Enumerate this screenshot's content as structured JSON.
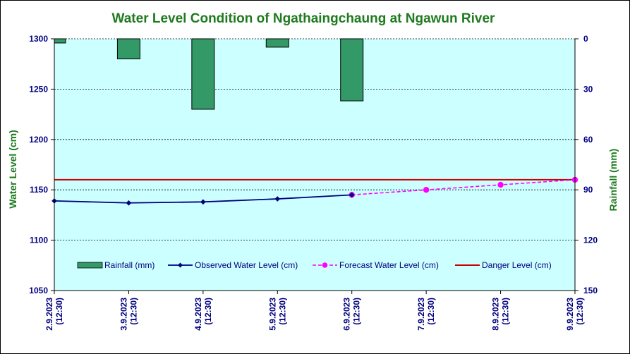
{
  "chart_data": {
    "type": "bar+line",
    "title": "Water Level Condition of  Ngathaingchaung at Ngawun River",
    "ylabel_left": "Water Level (cm)",
    "ylabel_right": "Rainfall (mm)",
    "ylim_left": [
      1050,
      1300
    ],
    "yticks_left": [
      1050,
      1100,
      1150,
      1200,
      1250,
      1300
    ],
    "ylim_right_inverted": [
      0,
      150
    ],
    "yticks_right": [
      0,
      30,
      60,
      90,
      120,
      150
    ],
    "categories": [
      [
        "2.9.2023",
        "(12:30)"
      ],
      [
        "3.9.2023",
        "(12:30)"
      ],
      [
        "4.9.2023",
        "(12:30)"
      ],
      [
        "5.9.2023",
        "(12:30)"
      ],
      [
        "6.9.2023",
        "(12:30)"
      ],
      [
        "7.9.2023",
        "(12:30)"
      ],
      [
        "8.9.2023",
        "(12:30)"
      ],
      [
        "9.9.2023",
        "(12:30)"
      ]
    ],
    "grid": "horizontal",
    "legend_position": "bottom",
    "series": [
      {
        "name": "Rainfall (mm)",
        "kind": "bar",
        "axis": "right",
        "values": [
          2.5,
          12,
          42,
          5,
          37,
          null,
          null,
          null
        ],
        "color": "#339966"
      },
      {
        "name": "Observed Water Level (cm)",
        "kind": "line",
        "axis": "left",
        "values": [
          1139,
          1137,
          1138,
          1141,
          1145,
          null,
          null,
          null
        ],
        "color": "#000080"
      },
      {
        "name": "Forecast Water Level (cm)",
        "kind": "dashed-line",
        "axis": "left",
        "values": [
          null,
          null,
          null,
          null,
          1145,
          1150,
          1155,
          1160
        ],
        "color": "#ff00ff"
      },
      {
        "name": "Danger Level (cm)",
        "kind": "hline",
        "axis": "left",
        "value": 1160,
        "color": "#cc0000"
      }
    ],
    "plot_background": "#ccffff"
  }
}
